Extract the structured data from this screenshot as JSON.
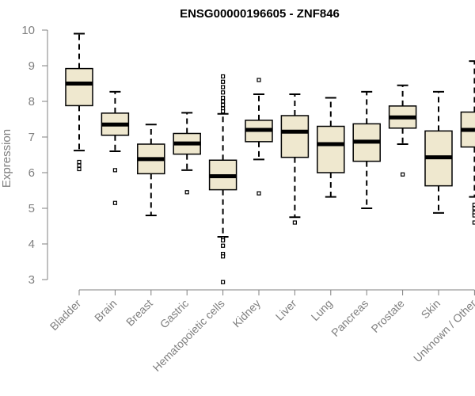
{
  "chart_data": {
    "type": "boxplot",
    "title": "ENSG00000196605 - ZNF846",
    "ylabel": "Expression",
    "xlabel": "",
    "ylim": [
      2.8,
      10.1
    ],
    "yticks": [
      3,
      4,
      5,
      6,
      7,
      8,
      9,
      10
    ],
    "box_color": "#EFE8CF",
    "line_color": "#000000",
    "axis_color": "#808080",
    "categories": [
      "Bladder",
      "Brain",
      "Breast",
      "Gastric",
      "Hematopoietic cells",
      "Kidney",
      "Liver",
      "Lung",
      "Pancreas",
      "Prostate",
      "Skin",
      "Unknown / Other"
    ],
    "boxes": [
      {
        "min": 6.62,
        "q1": 7.88,
        "median": 8.5,
        "q3": 8.92,
        "max": 9.9,
        "outliers": [
          6.3,
          6.2,
          6.1
        ]
      },
      {
        "min": 6.6,
        "q1": 7.05,
        "median": 7.35,
        "q3": 7.67,
        "max": 8.27,
        "outliers": [
          6.07,
          5.15
        ]
      },
      {
        "min": 4.8,
        "q1": 5.97,
        "median": 6.38,
        "q3": 6.8,
        "max": 7.35,
        "outliers": []
      },
      {
        "min": 6.07,
        "q1": 6.52,
        "median": 6.82,
        "q3": 7.1,
        "max": 7.68,
        "outliers": [
          5.45
        ]
      },
      {
        "min": 4.2,
        "q1": 5.52,
        "median": 5.9,
        "q3": 6.35,
        "max": 7.65,
        "outliers": [
          8.7,
          8.55,
          8.4,
          8.25,
          8.1,
          8.0,
          7.9,
          7.8,
          7.72,
          4.15,
          4.1,
          3.95,
          3.72,
          3.65,
          2.93
        ]
      },
      {
        "min": 6.37,
        "q1": 6.87,
        "median": 7.2,
        "q3": 7.47,
        "max": 8.2,
        "outliers": [
          8.6,
          5.42
        ]
      },
      {
        "min": 4.75,
        "q1": 6.43,
        "median": 7.15,
        "q3": 7.6,
        "max": 8.2,
        "outliers": [
          4.6
        ]
      },
      {
        "min": 5.32,
        "q1": 6.0,
        "median": 6.8,
        "q3": 7.3,
        "max": 8.1,
        "outliers": []
      },
      {
        "min": 5.0,
        "q1": 6.32,
        "median": 6.87,
        "q3": 7.37,
        "max": 8.27,
        "outliers": []
      },
      {
        "min": 6.8,
        "q1": 7.25,
        "median": 7.55,
        "q3": 7.87,
        "max": 8.45,
        "outliers": [
          5.95
        ]
      },
      {
        "min": 4.87,
        "q1": 5.63,
        "median": 6.43,
        "q3": 7.17,
        "max": 8.27,
        "outliers": []
      },
      {
        "min": 5.32,
        "q1": 6.72,
        "median": 7.2,
        "q3": 7.7,
        "max": 9.13,
        "outliers": [
          5.1,
          5.0,
          4.88,
          4.8,
          4.6
        ]
      }
    ],
    "grid": false,
    "legend": "none"
  }
}
